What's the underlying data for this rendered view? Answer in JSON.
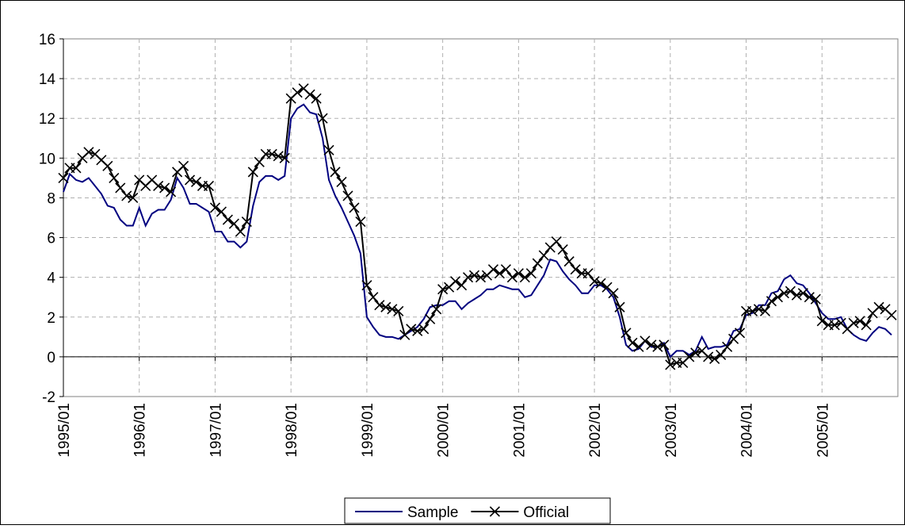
{
  "chart_data": {
    "type": "line",
    "categories": [
      "1995/01",
      null,
      null,
      null,
      null,
      null,
      null,
      null,
      null,
      null,
      null,
      null,
      "1996/01",
      null,
      null,
      null,
      null,
      null,
      null,
      null,
      null,
      null,
      null,
      null,
      "1997/01",
      null,
      null,
      null,
      null,
      null,
      null,
      null,
      null,
      null,
      null,
      null,
      "1998/01",
      null,
      null,
      null,
      null,
      null,
      null,
      null,
      null,
      null,
      null,
      null,
      "1999/01",
      null,
      null,
      null,
      null,
      null,
      null,
      null,
      null,
      null,
      null,
      null,
      "2000/01",
      null,
      null,
      null,
      null,
      null,
      null,
      null,
      null,
      null,
      null,
      null,
      "2001/01",
      null,
      null,
      null,
      null,
      null,
      null,
      null,
      null,
      null,
      null,
      null,
      "2002/01",
      null,
      null,
      null,
      null,
      null,
      null,
      null,
      null,
      null,
      null,
      null,
      "2003/01",
      null,
      null,
      null,
      null,
      null,
      null,
      null,
      null,
      null,
      null,
      null,
      "2004/01",
      null,
      null,
      null,
      null,
      null,
      null,
      null,
      null,
      null,
      null,
      null,
      "2005/01",
      null,
      null,
      null,
      null,
      null,
      null,
      null,
      null,
      null,
      null,
      null
    ],
    "series": [
      {
        "name": "Sample",
        "color": "#000080",
        "marker": "none",
        "values": [
          8.3,
          9.2,
          8.9,
          8.8,
          9.0,
          8.6,
          8.2,
          7.6,
          7.5,
          6.9,
          6.6,
          6.6,
          7.5,
          6.6,
          7.2,
          7.4,
          7.4,
          7.9,
          9.0,
          8.5,
          7.7,
          7.7,
          7.5,
          7.3,
          6.3,
          6.3,
          5.8,
          5.8,
          5.5,
          5.8,
          7.6,
          8.8,
          9.1,
          9.1,
          8.9,
          9.1,
          12.0,
          12.5,
          12.7,
          12.3,
          12.2,
          11.0,
          8.9,
          8.1,
          7.5,
          6.8,
          6.1,
          5.2,
          2.0,
          1.5,
          1.1,
          1.0,
          1.0,
          0.9,
          1.1,
          1.3,
          1.5,
          1.9,
          2.5,
          2.6,
          2.6,
          2.8,
          2.8,
          2.4,
          2.7,
          2.9,
          3.1,
          3.4,
          3.4,
          3.6,
          3.5,
          3.4,
          3.4,
          3.0,
          3.1,
          3.6,
          4.1,
          4.9,
          4.8,
          4.3,
          3.9,
          3.6,
          3.2,
          3.2,
          3.6,
          3.6,
          3.4,
          3.0,
          2.0,
          0.6,
          0.3,
          0.4,
          0.8,
          0.5,
          0.5,
          0.7,
          0.0,
          0.3,
          0.3,
          0.1,
          0.3,
          1.0,
          0.4,
          0.5,
          0.5,
          0.6,
          1.3,
          1.4,
          2.1,
          2.2,
          2.6,
          2.6,
          3.2,
          3.3,
          3.9,
          4.1,
          3.7,
          3.6,
          3.2,
          2.7,
          2.2,
          1.9,
          1.9,
          2.0,
          1.4,
          1.1,
          0.9,
          0.8,
          1.2,
          1.5,
          1.4,
          1.1
        ]
      },
      {
        "name": "Official",
        "color": "#000000",
        "marker": "x",
        "values": [
          9.0,
          9.5,
          9.5,
          10.0,
          10.3,
          10.2,
          9.9,
          9.6,
          9.0,
          8.5,
          8.1,
          8.0,
          8.9,
          8.6,
          8.9,
          8.6,
          8.5,
          8.3,
          9.3,
          9.6,
          8.9,
          8.8,
          8.6,
          8.6,
          7.5,
          7.3,
          6.9,
          6.7,
          6.3,
          6.8,
          9.3,
          9.8,
          10.2,
          10.2,
          10.1,
          10.0,
          13.0,
          13.3,
          13.5,
          13.2,
          13.0,
          12.0,
          10.4,
          9.3,
          8.8,
          8.1,
          7.5,
          6.8,
          3.6,
          3.0,
          2.6,
          2.5,
          2.4,
          2.3,
          1.1,
          1.4,
          1.3,
          1.4,
          1.9,
          2.4,
          3.4,
          3.5,
          3.8,
          3.6,
          4.0,
          4.1,
          4.0,
          4.1,
          4.4,
          4.2,
          4.4,
          4.0,
          4.2,
          4.0,
          4.2,
          4.7,
          5.1,
          5.5,
          5.8,
          5.4,
          4.8,
          4.4,
          4.2,
          4.2,
          3.8,
          3.7,
          3.5,
          3.2,
          2.5,
          1.2,
          0.7,
          0.5,
          0.8,
          0.6,
          0.5,
          0.6,
          -0.4,
          -0.3,
          -0.3,
          0.0,
          0.2,
          0.3,
          0.0,
          -0.1,
          0.1,
          0.5,
          0.9,
          1.2,
          2.3,
          2.3,
          2.4,
          2.3,
          2.8,
          3.0,
          3.2,
          3.3,
          3.1,
          3.2,
          3.0,
          2.9,
          1.8,
          1.6,
          1.6,
          1.7,
          1.4,
          1.7,
          1.8,
          1.6,
          2.2,
          2.5,
          2.4,
          2.1
        ]
      }
    ],
    "ylim": [
      -2,
      16
    ],
    "yticks": [
      -2,
      0,
      2,
      4,
      6,
      8,
      10,
      12,
      14,
      16
    ],
    "grid": true,
    "legend": "bottom"
  }
}
